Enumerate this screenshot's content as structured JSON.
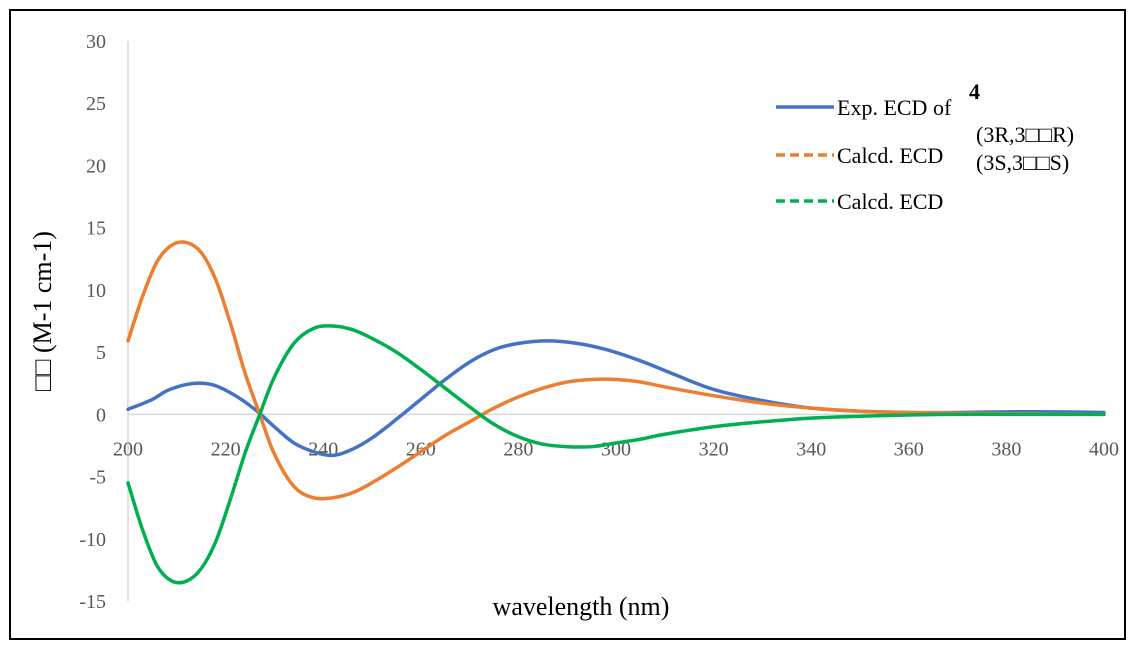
{
  "chart_data": {
    "type": "line",
    "xlabel": "wavelength (nm)",
    "ylabel": "□□ (M-1 cm-1)",
    "xlim": [
      200,
      400
    ],
    "ylim": [
      -15,
      30
    ],
    "xticks": [
      200,
      220,
      240,
      260,
      280,
      300,
      320,
      340,
      360,
      380,
      400
    ],
    "yticks": [
      -15,
      -10,
      -5,
      0,
      5,
      10,
      15,
      20,
      25,
      30
    ],
    "grid": false,
    "legend_position": "top-right",
    "legend_extra_text": [
      "4",
      "(3R,3□□R)",
      "(3S,3□□S)"
    ],
    "series": [
      {
        "name": "Exp. ECD of",
        "color": "#4472C4",
        "dash": "solid",
        "x": [
          200,
          205,
          208,
          212,
          215,
          218,
          222,
          226,
          230,
          234,
          238,
          242,
          246,
          250,
          255,
          260,
          265,
          270,
          275,
          280,
          286,
          292,
          298,
          305,
          312,
          320,
          330,
          340,
          350,
          360,
          370,
          380,
          390,
          400
        ],
        "y": [
          0.4,
          1.2,
          1.9,
          2.4,
          2.5,
          2.3,
          1.5,
          0.4,
          -1.0,
          -2.3,
          -3.0,
          -3.3,
          -2.8,
          -1.9,
          -0.4,
          1.2,
          2.8,
          4.2,
          5.2,
          5.7,
          5.9,
          5.7,
          5.2,
          4.3,
          3.2,
          2.0,
          1.1,
          0.5,
          0.25,
          0.15,
          0.15,
          0.2,
          0.2,
          0.15
        ]
      },
      {
        "name": "Calcd. ECD",
        "color": "#ED7D31",
        "dash": "dashed",
        "x": [
          200,
          203,
          206,
          209,
          212,
          215,
          218,
          221,
          224,
          227,
          230,
          234,
          238,
          242,
          246,
          250,
          255,
          260,
          265,
          270,
          275,
          280,
          285,
          290,
          295,
          300,
          305,
          310,
          320,
          330,
          340,
          350,
          360,
          370,
          380,
          390,
          400
        ],
        "y": [
          5.9,
          9.5,
          12.3,
          13.6,
          13.8,
          13.0,
          10.8,
          7.3,
          3.3,
          0,
          -3.2,
          -5.8,
          -6.7,
          -6.7,
          -6.3,
          -5.5,
          -4.3,
          -3.0,
          -1.7,
          -0.6,
          0.5,
          1.4,
          2.1,
          2.6,
          2.8,
          2.8,
          2.6,
          2.2,
          1.5,
          0.9,
          0.5,
          0.25,
          0.15,
          0.1,
          0.05,
          0.02,
          0.0
        ]
      },
      {
        "name": "Calcd. ECD",
        "color": "#00B050",
        "dash": "dashed",
        "x": [
          200,
          203,
          206,
          209,
          212,
          215,
          218,
          221,
          224,
          227,
          230,
          234,
          238,
          242,
          246,
          250,
          255,
          260,
          265,
          270,
          275,
          280,
          285,
          290,
          295,
          300,
          305,
          310,
          320,
          330,
          340,
          350,
          360,
          370,
          380,
          390,
          400
        ],
        "y": [
          -5.5,
          -9.3,
          -12.2,
          -13.4,
          -13.4,
          -12.4,
          -10.2,
          -6.8,
          -3.1,
          0,
          3.0,
          5.7,
          6.9,
          7.1,
          6.8,
          6.1,
          5.0,
          3.6,
          2.1,
          0.6,
          -0.8,
          -1.8,
          -2.4,
          -2.6,
          -2.6,
          -2.3,
          -2.0,
          -1.6,
          -1.0,
          -0.6,
          -0.3,
          -0.15,
          -0.05,
          0.0,
          0.0,
          0.0,
          0.0
        ]
      }
    ]
  }
}
